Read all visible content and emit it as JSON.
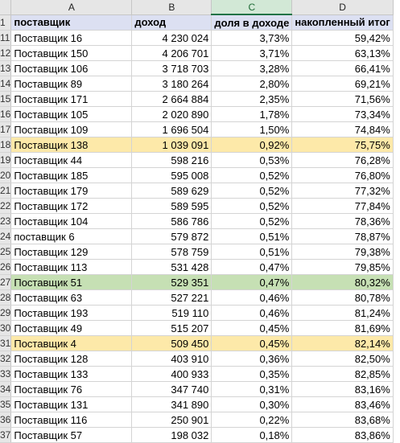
{
  "columns": [
    "A",
    "B",
    "C",
    "D"
  ],
  "selected_column": "C",
  "header_row": {
    "row": "1",
    "cells": [
      "поставщик",
      "доход",
      "доля в доходе",
      "накопленный итог"
    ]
  },
  "rows": [
    {
      "row": "11",
      "name": "Поставщик 16",
      "income": "4 230 024",
      "share": "3,73%",
      "cumulative": "59,42%",
      "highlight": ""
    },
    {
      "row": "12",
      "name": "Поставщик 150",
      "income": "4 206 701",
      "share": "3,71%",
      "cumulative": "63,13%",
      "highlight": ""
    },
    {
      "row": "13",
      "name": "Поставщик 106",
      "income": "3 718 703",
      "share": "3,28%",
      "cumulative": "66,41%",
      "highlight": ""
    },
    {
      "row": "14",
      "name": "Поставщик 89",
      "income": "3 180 264",
      "share": "2,80%",
      "cumulative": "69,21%",
      "highlight": ""
    },
    {
      "row": "15",
      "name": "Поставщик 171",
      "income": "2 664 884",
      "share": "2,35%",
      "cumulative": "71,56%",
      "highlight": ""
    },
    {
      "row": "16",
      "name": "Поставщик 105",
      "income": "2 020 890",
      "share": "1,78%",
      "cumulative": "73,34%",
      "highlight": ""
    },
    {
      "row": "17",
      "name": "Поставщик 109",
      "income": "1 696 504",
      "share": "1,50%",
      "cumulative": "74,84%",
      "highlight": ""
    },
    {
      "row": "18",
      "name": "Поставщик 138",
      "income": "1 039 091",
      "share": "0,92%",
      "cumulative": "75,75%",
      "highlight": "yellow"
    },
    {
      "row": "19",
      "name": "Поставщик 44",
      "income": "598 216",
      "share": "0,53%",
      "cumulative": "76,28%",
      "highlight": ""
    },
    {
      "row": "20",
      "name": "Поставщик 185",
      "income": "595 008",
      "share": "0,52%",
      "cumulative": "76,80%",
      "highlight": ""
    },
    {
      "row": "21",
      "name": "Поставщик 179",
      "income": "589 629",
      "share": "0,52%",
      "cumulative": "77,32%",
      "highlight": ""
    },
    {
      "row": "22",
      "name": "Поставщик 172",
      "income": "589 595",
      "share": "0,52%",
      "cumulative": "77,84%",
      "highlight": ""
    },
    {
      "row": "23",
      "name": "Поставщик 104",
      "income": "586 786",
      "share": "0,52%",
      "cumulative": "78,36%",
      "highlight": ""
    },
    {
      "row": "24",
      "name": "поставщик 6",
      "income": "579 872",
      "share": "0,51%",
      "cumulative": "78,87%",
      "highlight": ""
    },
    {
      "row": "25",
      "name": "Поставщик 129",
      "income": "578 759",
      "share": "0,51%",
      "cumulative": "79,38%",
      "highlight": ""
    },
    {
      "row": "26",
      "name": "Поставщик 113",
      "income": "531 428",
      "share": "0,47%",
      "cumulative": "79,85%",
      "highlight": ""
    },
    {
      "row": "27",
      "name": "Поставщик 51",
      "income": "529 351",
      "share": "0,47%",
      "cumulative": "80,32%",
      "highlight": "green"
    },
    {
      "row": "28",
      "name": "Поставщик 63",
      "income": "527 221",
      "share": "0,46%",
      "cumulative": "80,78%",
      "highlight": ""
    },
    {
      "row": "29",
      "name": "Поставщик 193",
      "income": "519 110",
      "share": "0,46%",
      "cumulative": "81,24%",
      "highlight": ""
    },
    {
      "row": "30",
      "name": "Поставщик 49",
      "income": "515 207",
      "share": "0,45%",
      "cumulative": "81,69%",
      "highlight": ""
    },
    {
      "row": "31",
      "name": "Поставщик 4",
      "income": "509 450",
      "share": "0,45%",
      "cumulative": "82,14%",
      "highlight": "yellow"
    },
    {
      "row": "32",
      "name": "Поставщик 128",
      "income": "403 910",
      "share": "0,36%",
      "cumulative": "82,50%",
      "highlight": ""
    },
    {
      "row": "33",
      "name": "Поставщик 133",
      "income": "400 933",
      "share": "0,35%",
      "cumulative": "82,85%",
      "highlight": ""
    },
    {
      "row": "34",
      "name": "Поставщик 76",
      "income": "347 740",
      "share": "0,31%",
      "cumulative": "83,16%",
      "highlight": ""
    },
    {
      "row": "35",
      "name": "Поставщик 131",
      "income": "341 890",
      "share": "0,30%",
      "cumulative": "83,46%",
      "highlight": ""
    },
    {
      "row": "36",
      "name": "Поставщик 116",
      "income": "250 901",
      "share": "0,22%",
      "cumulative": "83,68%",
      "highlight": ""
    },
    {
      "row": "37",
      "name": "Поставщик 57",
      "income": "198 032",
      "share": "0,18%",
      "cumulative": "83,86%",
      "highlight": ""
    }
  ],
  "highlight_colors": {
    "yellow": "#fde9a9",
    "green": "#c6e0b4",
    "header": "#dce0f2",
    "selected_column": "#d2e8d6"
  }
}
